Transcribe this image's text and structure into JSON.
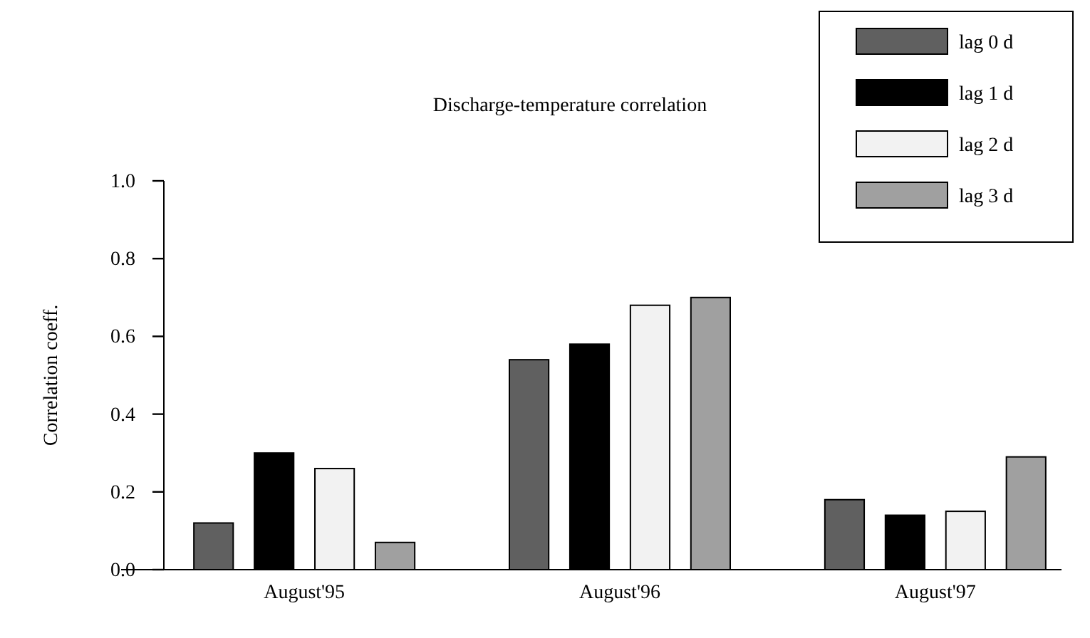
{
  "chart_data": {
    "type": "bar",
    "title": "Discharge-temperature correlation",
    "ylabel": "Correlation  coeff.",
    "categories": [
      "August'95",
      "August'96",
      "August'97"
    ],
    "series": [
      {
        "name": "lag 0 d",
        "color": "#606060",
        "values": [
          0.12,
          0.54,
          0.18
        ]
      },
      {
        "name": "lag 1 d",
        "color": "#000000",
        "values": [
          0.3,
          0.58,
          0.14
        ]
      },
      {
        "name": "lag 2 d",
        "color": "#f2f2f2",
        "values": [
          0.26,
          0.68,
          0.15
        ]
      },
      {
        "name": "lag 3 d",
        "color": "#a0a0a0",
        "values": [
          0.07,
          0.7,
          0.29
        ]
      }
    ],
    "ylim": [
      0,
      1
    ],
    "yticks": [
      {
        "value": 0,
        "label": "0.0"
      },
      {
        "value": 0.2,
        "label": "0.2"
      },
      {
        "value": 0.4,
        "label": "0.4"
      },
      {
        "value": 0.6,
        "label": "0.6"
      },
      {
        "value": 0.8,
        "label": "0.8"
      },
      {
        "value": 1,
        "label": "1.0"
      }
    ],
    "grid": false,
    "legend": "top right"
  }
}
